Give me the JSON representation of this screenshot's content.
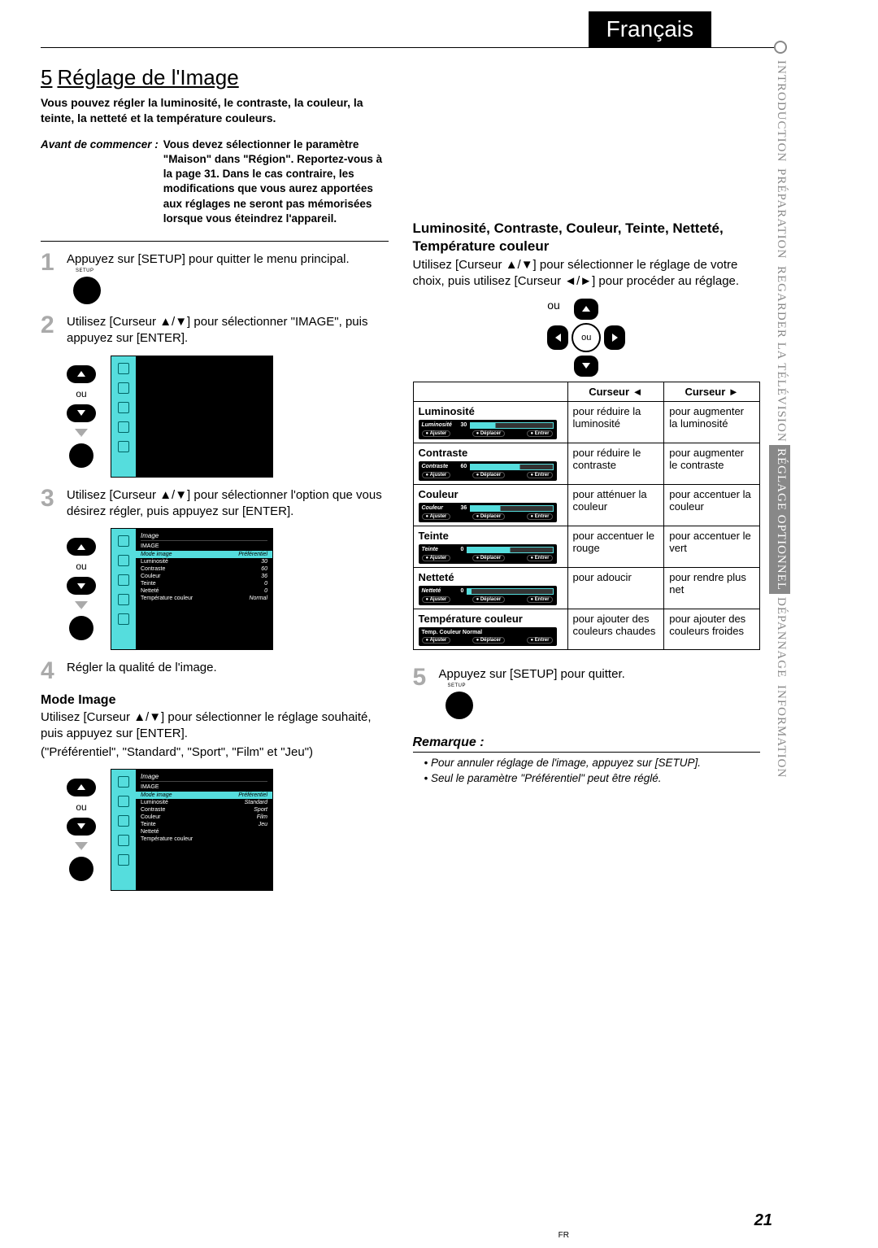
{
  "lang_tab": "Français",
  "side_tabs": [
    "INTRODUCTION",
    "PRÉPARATION",
    "REGARDER LA TÉLÉVISION",
    "RÉGLAGE OPTIONNEL",
    "DÉPANNAGE",
    "INFORMATION"
  ],
  "section_number": "5",
  "section_title": "Réglage de l'Image",
  "intro": "Vous pouvez régler la luminosité, le contraste, la couleur, la teinte, la netteté et la température couleurs.",
  "avant_label": "Avant de commencer :",
  "avant_text": "Vous devez sélectionner le paramètre \"Maison\" dans \"Région\". Reportez-vous à la page 31. Dans le cas contraire, les modifications que vous aurez apportées aux réglages ne seront pas mémorisées lorsque vous éteindrez l'appareil.",
  "steps": {
    "s1": "Appuyez sur [SETUP] pour quitter le menu principal.",
    "s2": "Utilisez [Curseur ▲/▼] pour sélectionner \"IMAGE\", puis appuyez sur [ENTER].",
    "s3": "Utilisez [Curseur ▲/▼] pour sélectionner l'option que vous désirez régler, puis appuyez sur [ENTER].",
    "s4": "Régler la qualité de l'image.",
    "s5": "Appuyez sur [SETUP] pour quitter."
  },
  "mode_image": {
    "title": "Mode Image",
    "desc": "Utilisez [Curseur ▲/▼] pour sélectionner le réglage souhaité, puis appuyez sur [ENTER].",
    "options": "(\"Préférentiel\", \"Standard\", \"Sport\", \"Film\" et \"Jeu\")"
  },
  "ou": "ou",
  "setup_label": "SETUP",
  "enter_label": "ENTER",
  "tv_header": "Image",
  "tv_menu_label": "IMAGE",
  "tv_rows": {
    "mode": "Mode image",
    "mode_v": "Préférentiel",
    "lum": "Luminosité",
    "lum_v": "30",
    "con": "Contraste",
    "con_v": "60",
    "cou": "Couleur",
    "cou_v": "36",
    "tei": "Teinte",
    "tei_v": "0",
    "net": "Netteté",
    "net_v": "0",
    "tem": "Température couleur",
    "tem_v": "Normal"
  },
  "tv_mode_list": [
    "Préférentiel",
    "Standard",
    "Sport",
    "Film",
    "Jeu"
  ],
  "right": {
    "title": "Luminosité, Contraste, Couleur, Teinte, Netteté, Température couleur",
    "desc": "Utilisez [Curseur ▲/▼] pour sélectionner le réglage de votre choix, puis utilisez [Curseur ◄/►] pour procéder au réglage."
  },
  "table": {
    "hdr_left": "Curseur ◄",
    "hdr_right": "Curseur ►",
    "rows": [
      {
        "param": "Luminosité",
        "val": "30",
        "pct": 30,
        "left": "pour réduire la luminosité",
        "right": "pour augmenter la luminosité"
      },
      {
        "param": "Contraste",
        "val": "60",
        "pct": 60,
        "left": "pour réduire le contraste",
        "right": "pour augmenter le contraste"
      },
      {
        "param": "Couleur",
        "val": "36",
        "pct": 36,
        "left": "pour atténuer la couleur",
        "right": "pour accentuer la couleur"
      },
      {
        "param": "Teinte",
        "val": "0",
        "pct": 50,
        "left": "pour accentuer le rouge",
        "right": "pour accentuer le vert"
      },
      {
        "param": "Netteté",
        "val": "0",
        "pct": 5,
        "left": "pour adoucir",
        "right": "pour rendre plus net"
      },
      {
        "param": "Température couleur",
        "val": "Temp. Couleur Normal",
        "pct": 0,
        "left": "pour ajouter des couleurs chaudes",
        "right": "pour ajouter des couleurs froides",
        "noTrack": true
      }
    ],
    "hints": {
      "a": "Ajuster",
      "b": "Déplacer",
      "c": "Entrer"
    }
  },
  "remarque": {
    "title": "Remarque :",
    "items": [
      "Pour annuler réglage de l'image, appuyez sur [SETUP].",
      "Seul le paramètre \"Préférentiel\" peut être réglé."
    ]
  },
  "page_number": "21",
  "page_lang": "FR",
  "colors": {
    "accent": "#5dd0d0",
    "side_gray": "#888888"
  }
}
